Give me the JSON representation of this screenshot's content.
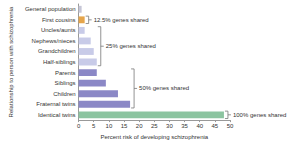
{
  "chart_data": {
    "type": "bar",
    "orientation": "horizontal",
    "xlabel": "Percent risk of developing schizophrenia",
    "ylabel": "Relationship to person with schizophrenia",
    "categories": [
      "General population",
      "First cousins",
      "Uncles/aunts",
      "Nephews/nieces",
      "Grandchildren",
      "Half-siblings",
      "Parents",
      "Siblings",
      "Children",
      "Fraternal twins",
      "Identical twins"
    ],
    "values": [
      1,
      2,
      2,
      4,
      5,
      6,
      6,
      9,
      13,
      17,
      48
    ],
    "colors": [
      "#c6c6d6",
      "#e5a54b",
      "#c8cbe8",
      "#c8cbe8",
      "#c8cbe8",
      "#c8cbe8",
      "#8b88c6",
      "#8b88c6",
      "#8b88c6",
      "#8b88c6",
      "#8cc4a0"
    ],
    "xlim": [
      0,
      50
    ],
    "xticks": [
      0,
      5,
      10,
      15,
      20,
      25,
      30,
      35,
      40,
      45,
      50
    ],
    "grid": false,
    "annotations": [
      {
        "text": "12.5% genes shared",
        "from": "First cousins",
        "to": "First cousins"
      },
      {
        "text": "25% genes shared",
        "from": "Uncles/aunts",
        "to": "Half-siblings"
      },
      {
        "text": "50% genes shared",
        "from": "Parents",
        "to": "Fraternal twins"
      },
      {
        "text": "100% genes shared",
        "from": "Identical twins",
        "to": "Identical twins"
      }
    ]
  }
}
